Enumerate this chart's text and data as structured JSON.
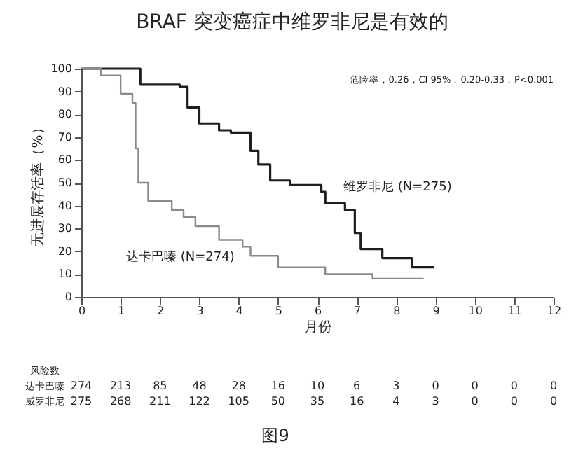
{
  "chart_data": {
    "type": "step",
    "title": "BRAF 突变癌症中维罗非尼是有效的",
    "xlabel": "月份",
    "ylabel": "无进展存活率（%）",
    "series": [
      {
        "name": "维罗非尼 (N=275)",
        "color": "#1e1e1e",
        "x": [
          0,
          1.2,
          1.5,
          2.5,
          2.7,
          3.0,
          3.5,
          3.8,
          4.3,
          4.5,
          4.8,
          5.3,
          6.1,
          6.2,
          6.7,
          6.95,
          7.1,
          7.65,
          8.4,
          8.96
        ],
        "values": [
          100,
          100,
          93,
          92,
          83,
          76,
          73,
          72,
          64,
          58,
          51,
          49,
          46,
          41,
          38,
          28,
          21,
          17,
          13,
          13
        ]
      },
      {
        "name": "达卡巴嗪 (N=274)",
        "color": "#8a8a8a",
        "x": [
          0,
          0.5,
          1.0,
          1.3,
          1.38,
          1.45,
          1.7,
          2.3,
          2.6,
          2.9,
          3.5,
          4.1,
          4.3,
          5.0,
          6.2,
          7.4,
          8.7
        ],
        "values": [
          100,
          97,
          89,
          85,
          65,
          50,
          42,
          38,
          35,
          31,
          25,
          22,
          18,
          13,
          10,
          8,
          8
        ]
      }
    ],
    "xlim": [
      0,
      12
    ],
    "xticks": [
      0,
      1,
      2,
      3,
      4,
      5,
      6,
      7,
      8,
      9,
      10,
      11,
      12
    ],
    "ylim": [
      0,
      100
    ],
    "yticks": [
      0,
      10,
      20,
      30,
      40,
      50,
      60,
      70,
      80,
      90,
      100
    ],
    "grid": false,
    "legend": false,
    "line_style": "solid",
    "marker": "none",
    "annotations": [
      "危险率，0.26，CI 95%，0.20-0.33，P<0.001",
      "风险数",
      "达卡巴嗪 274 213 85 48 28 16 10 6 3 0 0 0 0",
      "威罗非尼 275 268 211 122 105 50 35 16 4 3 0 0 0",
      "图9"
    ]
  }
}
